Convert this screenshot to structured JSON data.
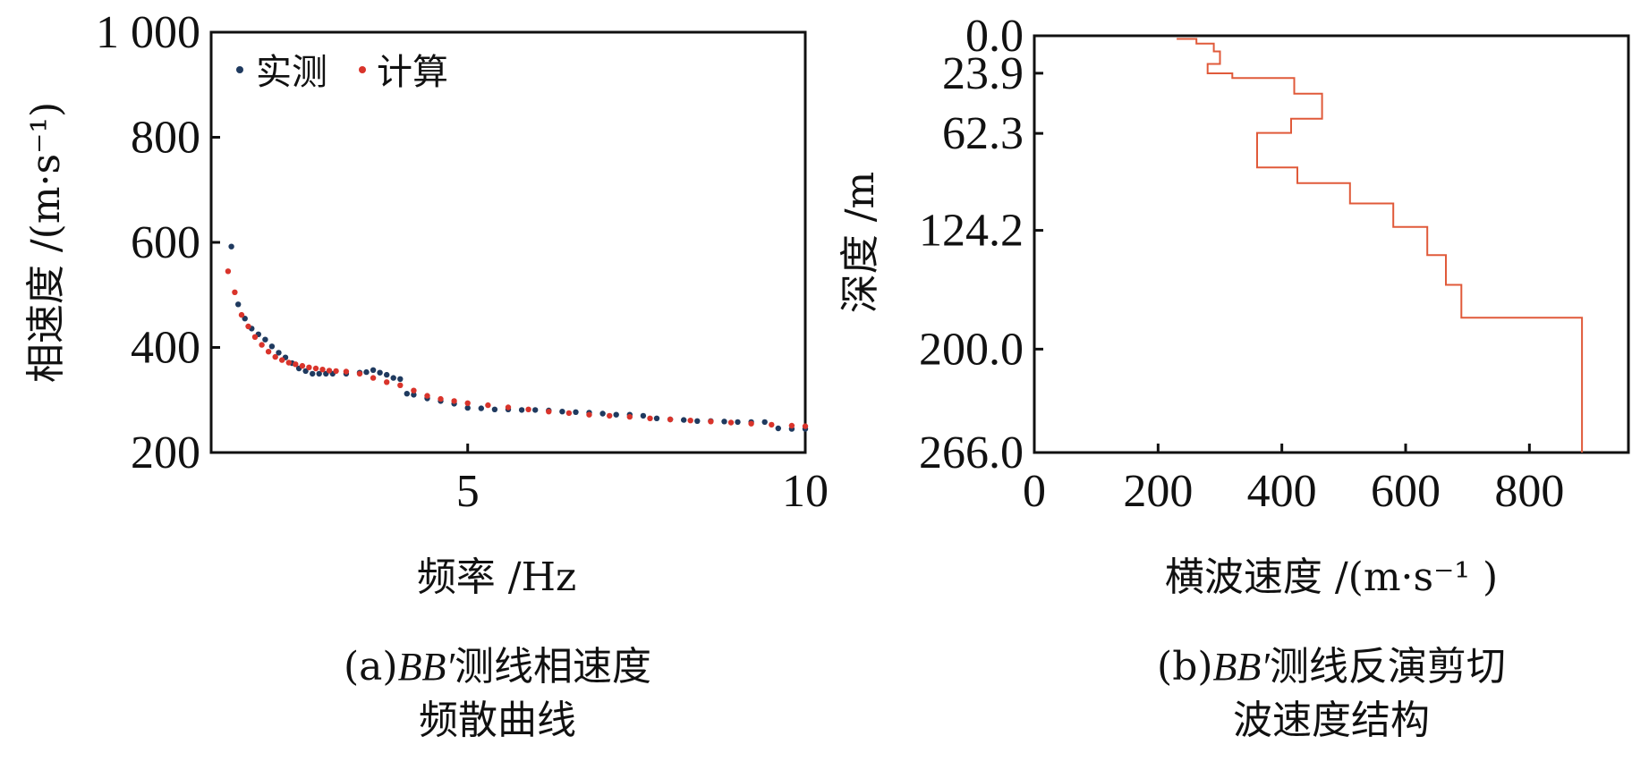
{
  "chart_data": [
    {
      "type": "scatter",
      "xlabel": "频率 /Hz",
      "ylabel": "相速度 /(m·s⁻¹)",
      "xlim": [
        1.2,
        10
      ],
      "ylim": [
        200,
        1000
      ],
      "xticks": [
        "5",
        "10"
      ],
      "yticks": [
        "200",
        "400",
        "600",
        "800",
        "1 000"
      ],
      "legend": "top-left",
      "caption_prefix": "(a)",
      "caption_italic": "BB′",
      "caption_line1_rest": "测线相速度",
      "caption_line2": "频散曲线",
      "series": [
        {
          "name": "实测",
          "color": "#1f3a5f",
          "x": [
            1.5,
            1.6,
            1.7,
            1.8,
            1.9,
            2.0,
            2.1,
            2.2,
            2.3,
            2.4,
            2.5,
            2.6,
            2.7,
            2.8,
            2.9,
            3.0,
            3.2,
            3.4,
            3.5,
            3.6,
            3.7,
            3.8,
            3.9,
            4.0,
            4.1,
            4.2,
            4.4,
            4.6,
            4.8,
            5.0,
            5.2,
            5.4,
            5.6,
            5.8,
            6.0,
            6.2,
            6.4,
            6.6,
            6.8,
            7.0,
            7.2,
            7.4,
            7.6,
            7.8,
            8.0,
            8.2,
            8.4,
            8.6,
            8.8,
            9.0,
            9.2,
            9.4,
            9.6,
            9.8,
            10.0
          ],
          "y": [
            592,
            482,
            455,
            436,
            425,
            415,
            402,
            390,
            381,
            370,
            360,
            355,
            350,
            350,
            350,
            350,
            350,
            352,
            353,
            357,
            352,
            348,
            342,
            340,
            312,
            310,
            303,
            298,
            293,
            285,
            284,
            282,
            282,
            281,
            281,
            280,
            278,
            277,
            276,
            274,
            272,
            272,
            270,
            265,
            263,
            262,
            260,
            260,
            259,
            258,
            258,
            258,
            246,
            245,
            245
          ]
        },
        {
          "name": "计算",
          "color": "#d9342b",
          "x": [
            1.45,
            1.55,
            1.65,
            1.75,
            1.85,
            1.95,
            2.05,
            2.15,
            2.25,
            2.35,
            2.45,
            2.55,
            2.65,
            2.75,
            2.85,
            2.95,
            3.05,
            3.2,
            3.4,
            3.6,
            3.8,
            4.0,
            4.2,
            4.4,
            4.6,
            4.8,
            5.0,
            5.3,
            5.6,
            5.9,
            6.2,
            6.5,
            6.8,
            7.1,
            7.4,
            7.7,
            8.0,
            8.3,
            8.6,
            8.9,
            9.2,
            9.5,
            9.8,
            10.0
          ],
          "y": [
            545,
            505,
            462,
            440,
            420,
            405,
            392,
            382,
            376,
            371,
            368,
            365,
            362,
            360,
            358,
            356,
            355,
            354,
            350,
            342,
            334,
            328,
            318,
            308,
            302,
            298,
            294,
            290,
            286,
            282,
            278,
            275,
            272,
            270,
            268,
            265,
            263,
            261,
            259,
            257,
            255,
            253,
            251,
            250
          ]
        }
      ]
    },
    {
      "type": "line",
      "xlabel": "横波速度 /(m·s⁻¹ )",
      "ylabel": "深度 /m",
      "xlim": [
        0,
        960
      ],
      "ylim": [
        0,
        266
      ],
      "xticks": [
        "0",
        "200",
        "400",
        "600",
        "800"
      ],
      "yticks": [
        "0.0",
        "23.9",
        "62.3",
        "124.2",
        "200.0",
        "266.0"
      ],
      "caption_prefix": "(b)",
      "caption_italic": "BB′",
      "caption_line1_rest": "测线反演剪切",
      "caption_line2": "波速度结构",
      "profile": {
        "color": "#e05a3a",
        "velocity": [
          230,
          262,
          290,
          300,
          280,
          320,
          420,
          465,
          415,
          360,
          425,
          510,
          580,
          635,
          665,
          690,
          885,
          885
        ],
        "depth": [
          2,
          5,
          10,
          18,
          24,
          27,
          37,
          53,
          62,
          84,
          94,
          107,
          122,
          140,
          159,
          180,
          200,
          266
        ]
      }
    }
  ]
}
